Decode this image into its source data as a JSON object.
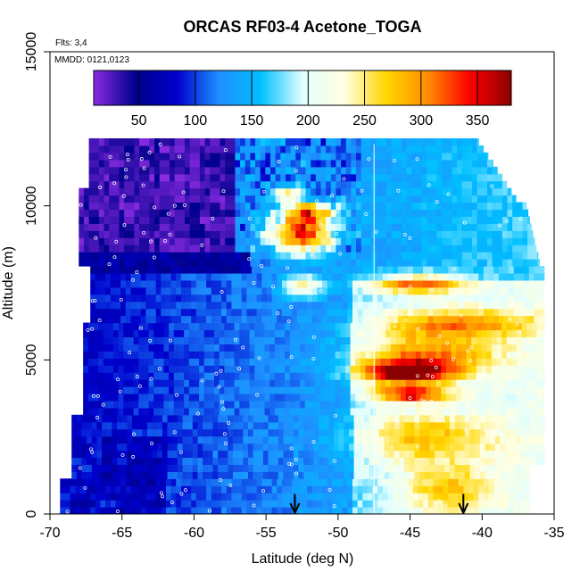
{
  "chart_data": {
    "type": "heatmap",
    "title": "ORCAS RF03-4 Acetone_TOGA",
    "flights_note": "Flts: 3,4",
    "date_note": "MMDD: 0121,0123",
    "xlabel": "Latitude (deg N)",
    "ylabel": "Altitude (m)",
    "xlim": [
      -70,
      -35
    ],
    "ylim": [
      0,
      15000
    ],
    "x_ticks": [
      -70,
      -65,
      -60,
      -55,
      -50,
      -45,
      -40,
      -35
    ],
    "y_ticks": [
      0,
      5000,
      10000,
      15000
    ],
    "grid": false,
    "colorbar": {
      "placement": "top-inside",
      "range": [
        10,
        380
      ],
      "ticks": [
        50,
        100,
        150,
        200,
        250,
        300,
        350
      ],
      "colors": [
        "#8a2be2",
        "#00008b",
        "#0000cd",
        "#1e90ff",
        "#00bfff",
        "#e0ffff",
        "#ffffe0",
        "#ffd700",
        "#ff8c00",
        "#ff0000",
        "#8b0000"
      ]
    },
    "vertical_line_lat": -47.5,
    "arrow_lats": [
      -53,
      -41.3
    ],
    "regions": [
      {
        "lat": [
          -68,
          -57
        ],
        "alt": [
          9000,
          12000
        ],
        "value": 20
      },
      {
        "lat": [
          -69,
          -62
        ],
        "alt": [
          0,
          2500
        ],
        "value": 70
      },
      {
        "lat": [
          -68,
          -56
        ],
        "alt": [
          2500,
          7500
        ],
        "value": 130
      },
      {
        "lat": [
          -57,
          -49
        ],
        "alt": [
          9000,
          12000
        ],
        "value": 100
      },
      {
        "lat": [
          -54,
          -51
        ],
        "alt": [
          8400,
          9800
        ],
        "value": 330
      },
      {
        "lat": [
          -48,
          -38
        ],
        "alt": [
          3500,
          7000
        ],
        "value": 240
      },
      {
        "lat": [
          -47,
          -43
        ],
        "alt": [
          3700,
          4800
        ],
        "value": 330
      },
      {
        "lat": [
          -45,
          -37
        ],
        "alt": [
          8000,
          12000
        ],
        "value": 160
      }
    ]
  }
}
